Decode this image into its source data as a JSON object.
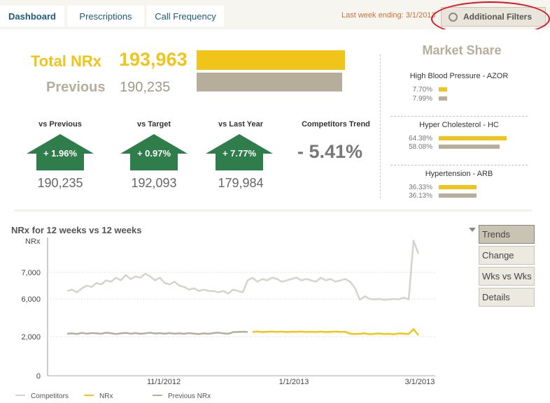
{
  "tabs": [
    {
      "label": "Dashboard",
      "active": true
    },
    {
      "label": "Prescriptions",
      "active": false
    },
    {
      "label": "Call Frequency",
      "active": false
    }
  ],
  "week_ending": "Last week ending: 3/1/2013",
  "filter_label": "Additional Filters",
  "total": {
    "label": "Total NRx",
    "value": "193,963"
  },
  "previous": {
    "label": "Previous",
    "value": "190,235"
  },
  "kpis": [
    {
      "title": "vs Previous",
      "pct": "+ 1.96%",
      "value": "190,235"
    },
    {
      "title": "vs Target",
      "pct": "+ 0.97%",
      "value": "192,093"
    },
    {
      "title": "vs Last Year",
      "pct": "+ 7.77%",
      "value": "179,984"
    }
  ],
  "competitors_trend": {
    "title": "Competitors Trend",
    "value": "- 5.41%"
  },
  "market_share": {
    "title": "Market Share",
    "groups": [
      {
        "name": "High Blood Pressure - AZOR",
        "current": "7.70%",
        "previous": "7.99%",
        "cur_val": 7.7,
        "prev_val": 7.99
      },
      {
        "name": "Hyper Cholesterol - HC",
        "current": "64.38%",
        "previous": "58.08%",
        "cur_val": 64.38,
        "prev_val": 58.08
      },
      {
        "name": "Hypertension - ARB",
        "current": "36.33%",
        "previous": "36.13%",
        "cur_val": 36.33,
        "prev_val": 36.13
      }
    ]
  },
  "side_buttons": [
    {
      "label": "Trends",
      "selected": true
    },
    {
      "label": "Change",
      "selected": false
    },
    {
      "label": "Wks vs Wks",
      "selected": false
    },
    {
      "label": "Details",
      "selected": false
    }
  ],
  "colors": {
    "gold": "#f0c419",
    "taupe": "#b6ad9a",
    "green": "#2e7d4a",
    "competitor": "#d6d3cc"
  },
  "chart_data": {
    "type": "line",
    "title": "NRx for 12 weeks vs 12 weeks",
    "ylabel": "NRx",
    "yticks": [
      "0",
      "2,000",
      "6,000",
      "7,000"
    ],
    "xticks": [
      "11/1/2012",
      "1/1/2013",
      "3/1/2013"
    ],
    "series": [
      {
        "name": "Competitors",
        "color": "#d6d3cc",
        "values": [
          6300,
          6350,
          6250,
          6400,
          6500,
          6450,
          6600,
          6550,
          6700,
          6650,
          6800,
          6700,
          6900,
          6750,
          6850,
          6800,
          6950,
          6850,
          6700,
          6800,
          6600,
          6550,
          6650,
          6500,
          6450,
          6350,
          6400,
          6300,
          6350,
          6300,
          6300,
          6250,
          6300,
          6200,
          6350,
          6300,
          6250,
          6700,
          6800,
          6650,
          6750,
          6700,
          6800,
          6750,
          6650,
          6700,
          6750,
          6800,
          6700,
          6750,
          6700,
          6650,
          6800,
          6700,
          6750,
          6650,
          6700,
          6750,
          6650,
          6400,
          5900,
          6100,
          6000,
          5950,
          6000,
          5900,
          5950,
          6000,
          5950,
          6050,
          5950,
          8200,
          7700
        ]
      },
      {
        "name": "NRx",
        "color": "#f0c419",
        "values": [
          null,
          null,
          null,
          null,
          null,
          null,
          null,
          null,
          null,
          null,
          null,
          null,
          null,
          null,
          null,
          null,
          null,
          null,
          null,
          null,
          null,
          null,
          null,
          null,
          null,
          null,
          null,
          null,
          null,
          null,
          null,
          null,
          null,
          null,
          null,
          null,
          null,
          null,
          2500,
          2550,
          2480,
          2520,
          2530,
          2500,
          2540,
          2480,
          2520,
          2510,
          2530,
          2490,
          2520,
          2500,
          2540,
          2480,
          2510,
          2530,
          2500,
          2520,
          2300,
          2280,
          2300,
          2350,
          2250,
          2300,
          2330,
          2280,
          2300,
          2250,
          2350,
          2320,
          2280,
          2800,
          2150
        ]
      },
      {
        "name": "Previous NRx",
        "color": "#b6ad9a",
        "values": [
          2300,
          2350,
          2280,
          2400,
          2320,
          2380,
          2350,
          2300,
          2420,
          2360,
          2280,
          2350,
          2400,
          2320,
          2380,
          2300,
          2350,
          2420,
          2330,
          2370,
          2310,
          2380,
          2320,
          2350,
          2300,
          2380,
          2320,
          2280,
          2350,
          2300,
          2380,
          2420,
          2350,
          2300,
          2480,
          2500,
          2520,
          2500,
          null,
          null,
          null,
          null,
          null,
          null,
          null,
          null,
          null,
          null,
          null,
          null,
          null,
          null,
          null,
          null,
          null,
          null,
          null,
          null,
          null,
          null,
          null,
          null,
          null,
          null,
          null,
          null,
          null,
          null,
          null,
          null,
          null,
          null,
          null
        ]
      }
    ]
  }
}
